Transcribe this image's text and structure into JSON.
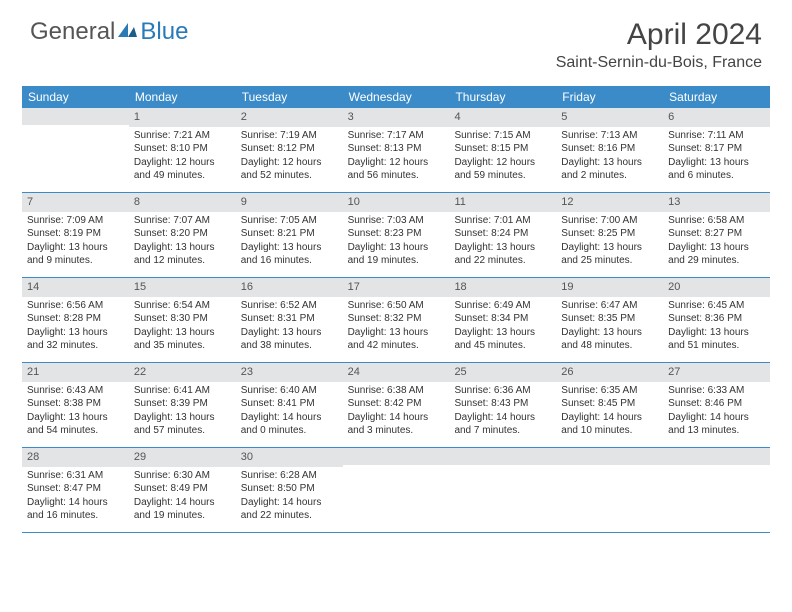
{
  "logo": {
    "text1": "General",
    "text2": "Blue"
  },
  "title": "April 2024",
  "location": "Saint-Sernin-du-Bois, France",
  "day_headers": [
    "Sunday",
    "Monday",
    "Tuesday",
    "Wednesday",
    "Thursday",
    "Friday",
    "Saturday"
  ],
  "colors": {
    "header_bg": "#3b8bc8",
    "cell_num_bg": "#e3e4e5",
    "border": "#3b8bc8",
    "text": "#333333"
  },
  "weeks": [
    [
      {
        "n": "",
        "sr": "",
        "ss": "",
        "dl": ""
      },
      {
        "n": "1",
        "sr": "Sunrise: 7:21 AM",
        "ss": "Sunset: 8:10 PM",
        "dl": "Daylight: 12 hours and 49 minutes."
      },
      {
        "n": "2",
        "sr": "Sunrise: 7:19 AM",
        "ss": "Sunset: 8:12 PM",
        "dl": "Daylight: 12 hours and 52 minutes."
      },
      {
        "n": "3",
        "sr": "Sunrise: 7:17 AM",
        "ss": "Sunset: 8:13 PM",
        "dl": "Daylight: 12 hours and 56 minutes."
      },
      {
        "n": "4",
        "sr": "Sunrise: 7:15 AM",
        "ss": "Sunset: 8:15 PM",
        "dl": "Daylight: 12 hours and 59 minutes."
      },
      {
        "n": "5",
        "sr": "Sunrise: 7:13 AM",
        "ss": "Sunset: 8:16 PM",
        "dl": "Daylight: 13 hours and 2 minutes."
      },
      {
        "n": "6",
        "sr": "Sunrise: 7:11 AM",
        "ss": "Sunset: 8:17 PM",
        "dl": "Daylight: 13 hours and 6 minutes."
      }
    ],
    [
      {
        "n": "7",
        "sr": "Sunrise: 7:09 AM",
        "ss": "Sunset: 8:19 PM",
        "dl": "Daylight: 13 hours and 9 minutes."
      },
      {
        "n": "8",
        "sr": "Sunrise: 7:07 AM",
        "ss": "Sunset: 8:20 PM",
        "dl": "Daylight: 13 hours and 12 minutes."
      },
      {
        "n": "9",
        "sr": "Sunrise: 7:05 AM",
        "ss": "Sunset: 8:21 PM",
        "dl": "Daylight: 13 hours and 16 minutes."
      },
      {
        "n": "10",
        "sr": "Sunrise: 7:03 AM",
        "ss": "Sunset: 8:23 PM",
        "dl": "Daylight: 13 hours and 19 minutes."
      },
      {
        "n": "11",
        "sr": "Sunrise: 7:01 AM",
        "ss": "Sunset: 8:24 PM",
        "dl": "Daylight: 13 hours and 22 minutes."
      },
      {
        "n": "12",
        "sr": "Sunrise: 7:00 AM",
        "ss": "Sunset: 8:25 PM",
        "dl": "Daylight: 13 hours and 25 minutes."
      },
      {
        "n": "13",
        "sr": "Sunrise: 6:58 AM",
        "ss": "Sunset: 8:27 PM",
        "dl": "Daylight: 13 hours and 29 minutes."
      }
    ],
    [
      {
        "n": "14",
        "sr": "Sunrise: 6:56 AM",
        "ss": "Sunset: 8:28 PM",
        "dl": "Daylight: 13 hours and 32 minutes."
      },
      {
        "n": "15",
        "sr": "Sunrise: 6:54 AM",
        "ss": "Sunset: 8:30 PM",
        "dl": "Daylight: 13 hours and 35 minutes."
      },
      {
        "n": "16",
        "sr": "Sunrise: 6:52 AM",
        "ss": "Sunset: 8:31 PM",
        "dl": "Daylight: 13 hours and 38 minutes."
      },
      {
        "n": "17",
        "sr": "Sunrise: 6:50 AM",
        "ss": "Sunset: 8:32 PM",
        "dl": "Daylight: 13 hours and 42 minutes."
      },
      {
        "n": "18",
        "sr": "Sunrise: 6:49 AM",
        "ss": "Sunset: 8:34 PM",
        "dl": "Daylight: 13 hours and 45 minutes."
      },
      {
        "n": "19",
        "sr": "Sunrise: 6:47 AM",
        "ss": "Sunset: 8:35 PM",
        "dl": "Daylight: 13 hours and 48 minutes."
      },
      {
        "n": "20",
        "sr": "Sunrise: 6:45 AM",
        "ss": "Sunset: 8:36 PM",
        "dl": "Daylight: 13 hours and 51 minutes."
      }
    ],
    [
      {
        "n": "21",
        "sr": "Sunrise: 6:43 AM",
        "ss": "Sunset: 8:38 PM",
        "dl": "Daylight: 13 hours and 54 minutes."
      },
      {
        "n": "22",
        "sr": "Sunrise: 6:41 AM",
        "ss": "Sunset: 8:39 PM",
        "dl": "Daylight: 13 hours and 57 minutes."
      },
      {
        "n": "23",
        "sr": "Sunrise: 6:40 AM",
        "ss": "Sunset: 8:41 PM",
        "dl": "Daylight: 14 hours and 0 minutes."
      },
      {
        "n": "24",
        "sr": "Sunrise: 6:38 AM",
        "ss": "Sunset: 8:42 PM",
        "dl": "Daylight: 14 hours and 3 minutes."
      },
      {
        "n": "25",
        "sr": "Sunrise: 6:36 AM",
        "ss": "Sunset: 8:43 PM",
        "dl": "Daylight: 14 hours and 7 minutes."
      },
      {
        "n": "26",
        "sr": "Sunrise: 6:35 AM",
        "ss": "Sunset: 8:45 PM",
        "dl": "Daylight: 14 hours and 10 minutes."
      },
      {
        "n": "27",
        "sr": "Sunrise: 6:33 AM",
        "ss": "Sunset: 8:46 PM",
        "dl": "Daylight: 14 hours and 13 minutes."
      }
    ],
    [
      {
        "n": "28",
        "sr": "Sunrise: 6:31 AM",
        "ss": "Sunset: 8:47 PM",
        "dl": "Daylight: 14 hours and 16 minutes."
      },
      {
        "n": "29",
        "sr": "Sunrise: 6:30 AM",
        "ss": "Sunset: 8:49 PM",
        "dl": "Daylight: 14 hours and 19 minutes."
      },
      {
        "n": "30",
        "sr": "Sunrise: 6:28 AM",
        "ss": "Sunset: 8:50 PM",
        "dl": "Daylight: 14 hours and 22 minutes."
      },
      {
        "n": "",
        "sr": "",
        "ss": "",
        "dl": ""
      },
      {
        "n": "",
        "sr": "",
        "ss": "",
        "dl": ""
      },
      {
        "n": "",
        "sr": "",
        "ss": "",
        "dl": ""
      },
      {
        "n": "",
        "sr": "",
        "ss": "",
        "dl": ""
      }
    ]
  ]
}
